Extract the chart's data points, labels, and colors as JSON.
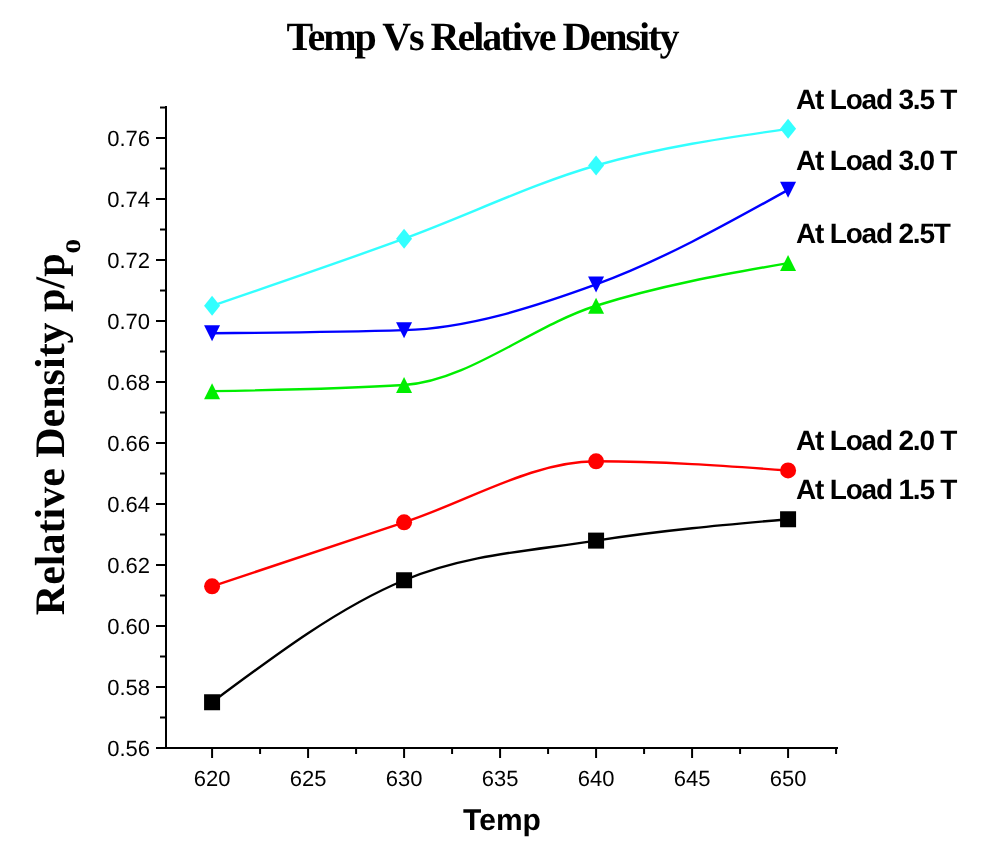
{
  "chart_data": {
    "type": "line",
    "title": "Temp Vs Relative Density",
    "xlabel": "Temp",
    "ylabel": "Relative Density p/p$_{o}$",
    "x": [
      620,
      630,
      640,
      650
    ],
    "xlim": [
      617.6,
      652.6
    ],
    "xticks": [
      620,
      {
        "value": 622.5,
        "label": null
      },
      625,
      {
        "value": 627.5,
        "label": null
      },
      630,
      {
        "value": 632.5,
        "label": null
      },
      635,
      {
        "value": 637.5,
        "label": null
      },
      640,
      {
        "value": 642.5,
        "label": null
      },
      645,
      {
        "value": 647.5,
        "label": null
      },
      650,
      {
        "value": 652.5,
        "label": null
      }
    ],
    "ylim": [
      0.56,
      0.7705
    ],
    "yticks": [
      0.56,
      {
        "value": 0.57,
        "label": null
      },
      0.58,
      {
        "value": 0.59,
        "label": null
      },
      {
        "value": 0.6,
        "label": "0.60"
      },
      {
        "value": 0.61,
        "label": null
      },
      0.62,
      {
        "value": 0.63,
        "label": null
      },
      0.64,
      {
        "value": 0.65,
        "label": null
      },
      0.66,
      {
        "value": 0.67,
        "label": null
      },
      0.68,
      {
        "value": 0.69,
        "label": null
      },
      {
        "value": 0.7,
        "label": "0.70"
      },
      {
        "value": 0.71,
        "label": null
      },
      0.72,
      {
        "value": 0.73,
        "label": null
      },
      0.74,
      {
        "value": 0.75,
        "label": null
      },
      0.76,
      {
        "value": 0.77,
        "label": null
      }
    ],
    "grid": false,
    "series": [
      {
        "name": "At Load 3.5 T",
        "color": "#33ffff",
        "marker": "diamond",
        "values": [
          0.705,
          0.727,
          0.751,
          0.763
        ]
      },
      {
        "name": "At Load 3.0 T",
        "color": "#0000ff",
        "marker": "triangle-down",
        "values": [
          0.696,
          0.697,
          0.712,
          0.743
        ]
      },
      {
        "name": "At Load 2.5T",
        "color": "#00ee00",
        "marker": "triangle",
        "values": [
          0.677,
          0.679,
          0.705,
          0.719
        ]
      },
      {
        "name": "At Load 2.0 T",
        "color": "#ff0000",
        "marker": "circle",
        "values": [
          0.613,
          0.634,
          0.654,
          0.651
        ]
      },
      {
        "name": "At Load 1.5 T",
        "color": "#000000",
        "marker": "square",
        "values": [
          0.575,
          0.615,
          0.628,
          0.635
        ]
      }
    ]
  }
}
